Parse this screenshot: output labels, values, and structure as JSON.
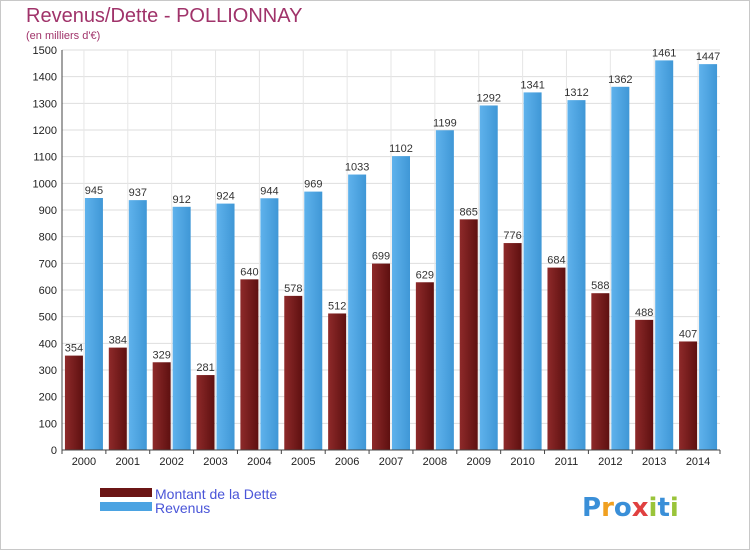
{
  "chart_data": {
    "type": "bar",
    "title": "Revenus/Dette - POLLIONNAY",
    "subtitle": "(en milliers d'€)",
    "categories": [
      "2000",
      "2001",
      "2002",
      "2003",
      "2004",
      "2005",
      "2006",
      "2007",
      "2008",
      "2009",
      "2010",
      "2011",
      "2012",
      "2013",
      "2014"
    ],
    "series": [
      {
        "name": "Montant de la Dette",
        "color": "#7a1f1f",
        "values": [
          354,
          384,
          329,
          281,
          640,
          578,
          512,
          699,
          629,
          865,
          776,
          684,
          588,
          488,
          407
        ]
      },
      {
        "name": "Revenus",
        "color": "#4ba3e2",
        "values": [
          945,
          937,
          912,
          924,
          944,
          969,
          1033,
          1102,
          1199,
          1292,
          1341,
          1312,
          1362,
          1461,
          1447
        ]
      }
    ],
    "ylim": [
      0,
      1500
    ],
    "yticks": [
      0,
      100,
      200,
      300,
      400,
      500,
      600,
      700,
      800,
      900,
      1000,
      1100,
      1200,
      1300,
      1400,
      1500
    ],
    "grid": true,
    "legend_position": "bottom-left"
  },
  "logo": {
    "letters": [
      "P",
      "r",
      "o",
      "x",
      "i",
      "t",
      "i"
    ],
    "colors": [
      "#3a8fd8",
      "#f0a020",
      "#3a8fd8",
      "#e04040",
      "#9ac43a",
      "#3a8fd8",
      "#9ac43a"
    ]
  }
}
